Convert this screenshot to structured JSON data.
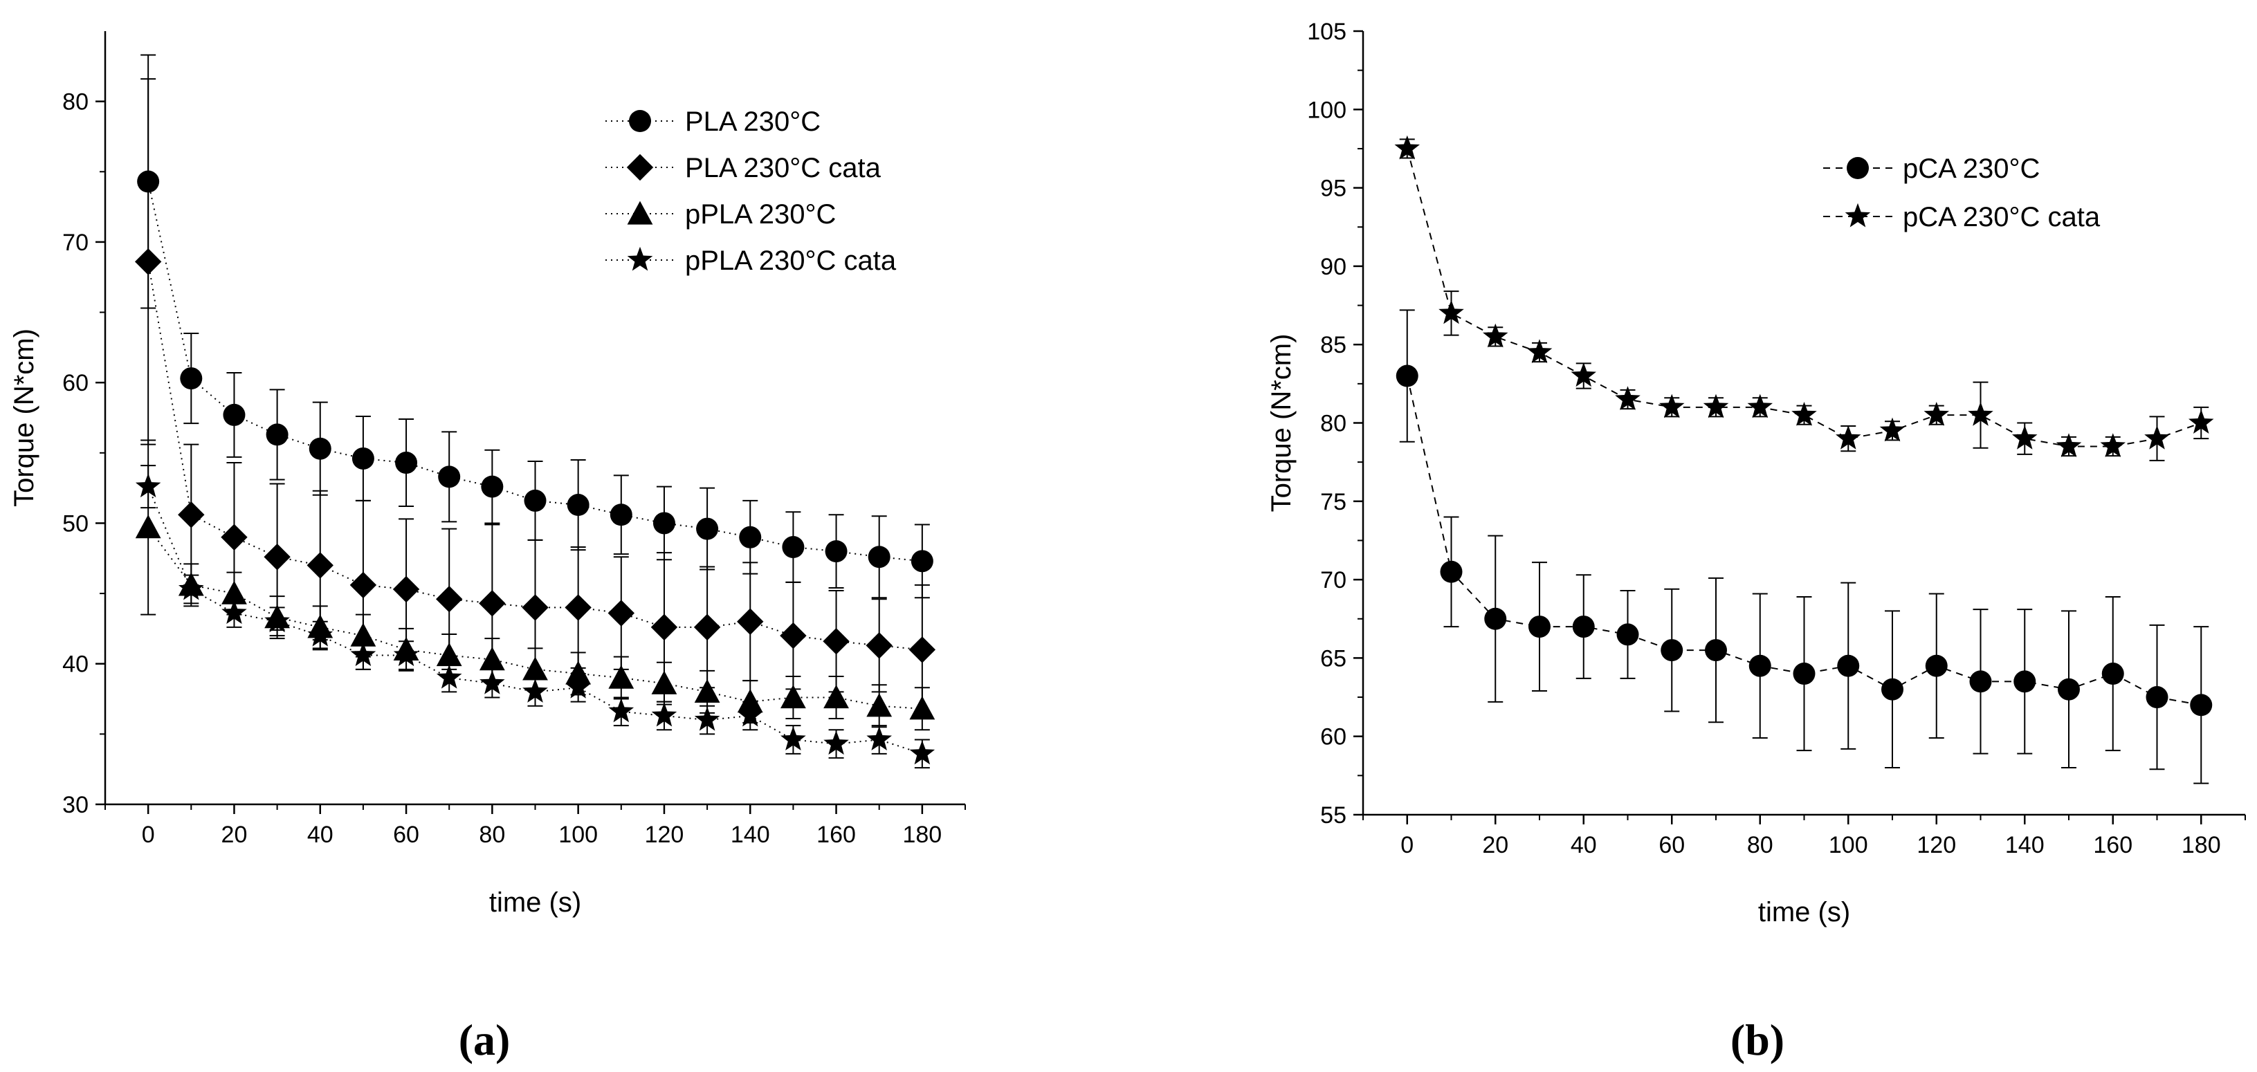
{
  "chart_data": [
    {
      "type": "line",
      "panel_label": "(a)",
      "title": "",
      "xlabel": "time (s)",
      "ylabel": "Torque (N*cm)",
      "xlim": [
        -10,
        190
      ],
      "ylim": [
        30,
        85
      ],
      "xticks": [
        0,
        20,
        40,
        60,
        80,
        100,
        120,
        140,
        160,
        180
      ],
      "yticks": [
        30,
        40,
        50,
        60,
        70,
        80
      ],
      "grid": false,
      "legend_position": "top-right",
      "x": [
        0,
        10,
        20,
        30,
        40,
        50,
        60,
        70,
        80,
        90,
        100,
        110,
        120,
        130,
        140,
        150,
        160,
        170,
        180
      ],
      "series": [
        {
          "name": "PLA 230°C",
          "marker": "circle",
          "line_style": "dotted",
          "values": [
            74.3,
            60.3,
            57.7,
            56.3,
            55.3,
            54.6,
            54.3,
            53.3,
            52.6,
            51.6,
            51.3,
            50.6,
            50.0,
            49.6,
            49.0,
            48.3,
            48.0,
            47.6,
            47.3
          ],
          "errors": [
            9.0,
            3.2,
            3.0,
            3.2,
            3.3,
            3.0,
            3.1,
            3.2,
            2.6,
            2.8,
            3.2,
            2.8,
            2.6,
            2.9,
            2.6,
            2.5,
            2.6,
            2.9,
            2.6
          ]
        },
        {
          "name": "PLA 230°C cata",
          "marker": "diamond",
          "line_style": "dotted",
          "values": [
            68.6,
            50.6,
            49.0,
            47.6,
            47.0,
            45.6,
            45.3,
            44.6,
            44.3,
            44.0,
            44.0,
            43.6,
            42.6,
            42.6,
            43.0,
            42.0,
            41.6,
            41.3,
            41.0
          ],
          "errors": [
            13.0,
            5.0,
            5.3,
            5.2,
            5.3,
            6.0,
            5.0,
            5.0,
            5.6,
            4.8,
            4.3,
            4.0,
            5.3,
            4.3,
            4.2,
            3.8,
            3.6,
            3.3,
            4.6
          ]
        },
        {
          "name": "pPLA 230°C",
          "marker": "triangle",
          "line_style": "dotted",
          "values": [
            49.7,
            45.6,
            45.0,
            43.3,
            42.6,
            42.0,
            41.0,
            40.6,
            40.3,
            39.6,
            39.3,
            39.0,
            38.6,
            38.0,
            37.3,
            37.6,
            37.6,
            37.0,
            36.8
          ],
          "errors": [
            6.2,
            1.5,
            1.5,
            1.5,
            1.5,
            1.5,
            1.5,
            1.5,
            1.5,
            1.5,
            1.5,
            1.5,
            1.5,
            1.5,
            1.5,
            1.5,
            1.5,
            1.5,
            1.5
          ]
        },
        {
          "name": "pPLA 230°C cata",
          "marker": "star",
          "line_style": "dotted",
          "values": [
            52.6,
            45.3,
            43.6,
            43.0,
            42.0,
            40.6,
            40.6,
            39.0,
            38.6,
            38.0,
            38.3,
            36.6,
            36.3,
            36.0,
            36.3,
            34.6,
            34.3,
            34.6,
            33.6
          ],
          "errors": [
            1.5,
            1.0,
            1.0,
            1.0,
            1.0,
            1.0,
            1.0,
            1.0,
            1.0,
            1.0,
            1.0,
            1.0,
            1.0,
            1.0,
            1.0,
            1.0,
            1.0,
            1.0,
            1.0
          ]
        }
      ]
    },
    {
      "type": "line",
      "panel_label": "(b)",
      "title": "",
      "xlabel": "time (s)",
      "ylabel": "Torque (N*cm)",
      "xlim": [
        -10,
        190
      ],
      "ylim": [
        55,
        105
      ],
      "xticks": [
        0,
        20,
        40,
        60,
        80,
        100,
        120,
        140,
        160,
        180
      ],
      "yticks": [
        55,
        60,
        65,
        70,
        75,
        80,
        85,
        90,
        95,
        100,
        105
      ],
      "grid": false,
      "legend_position": "top-right",
      "x": [
        0,
        10,
        20,
        30,
        40,
        50,
        60,
        70,
        80,
        90,
        100,
        110,
        120,
        130,
        140,
        150,
        160,
        170,
        180
      ],
      "series": [
        {
          "name": "pCA 230°C",
          "marker": "circle",
          "line_style": "dashed",
          "values": [
            83.0,
            70.5,
            67.5,
            67.0,
            67.0,
            66.5,
            65.5,
            65.5,
            64.5,
            64.0,
            64.5,
            63.0,
            64.5,
            63.5,
            63.5,
            63.0,
            64.0,
            62.5,
            62.0
          ],
          "errors": [
            4.2,
            3.5,
            5.3,
            4.1,
            3.3,
            2.8,
            3.9,
            4.6,
            4.6,
            4.9,
            5.3,
            5.0,
            4.6,
            4.6,
            4.6,
            5.0,
            4.9,
            4.6,
            5.0
          ]
        },
        {
          "name": "pCA 230°C cata",
          "marker": "star",
          "line_style": "dashed",
          "values": [
            97.5,
            87.0,
            85.5,
            84.5,
            83.0,
            81.5,
            81.0,
            81.0,
            81.0,
            80.5,
            79.0,
            79.5,
            80.5,
            80.5,
            79.0,
            78.5,
            78.5,
            79.0,
            80.0
          ],
          "errors": [
            0.6,
            1.4,
            0.6,
            0.6,
            0.8,
            0.6,
            0.6,
            0.6,
            0.6,
            0.6,
            0.8,
            0.6,
            0.6,
            2.1,
            1.0,
            0.6,
            0.6,
            1.4,
            1.0
          ]
        }
      ]
    }
  ]
}
